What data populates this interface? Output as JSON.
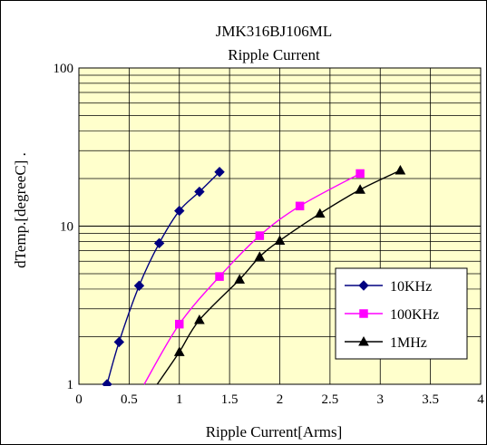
{
  "chart_data": {
    "type": "line",
    "title": "JMK316BJ106ML",
    "subtitle": "Ripple Current",
    "xlabel": "Ripple Current[Arms]",
    "ylabel": "dTemp.[degreeC] .",
    "xlim": [
      0,
      4
    ],
    "ylim": [
      1,
      100
    ],
    "yscale": "log",
    "x_ticks": [
      "0",
      "0.5",
      "1",
      "1.5",
      "2",
      "2.5",
      "3",
      "3.5",
      "4"
    ],
    "y_ticks": [
      "1",
      "10",
      "100"
    ],
    "grid": true,
    "legend_position": "bottom-right",
    "background_color": "#ffffcc",
    "series": [
      {
        "name": "10KHz",
        "color": "#000080",
        "marker": "diamond",
        "x": [
          0.28,
          0.4,
          0.6,
          0.8,
          1.0,
          1.2,
          1.4
        ],
        "y": [
          1.0,
          1.85,
          4.2,
          7.8,
          12.5,
          16.5,
          22.0
        ]
      },
      {
        "name": "100KHz",
        "color": "#ff00ff",
        "marker": "square",
        "x": [
          0.65,
          1.0,
          1.4,
          1.8,
          2.2,
          2.8
        ],
        "y": [
          1.0,
          2.4,
          4.8,
          8.7,
          13.4,
          21.5
        ]
      },
      {
        "name": "1MHz",
        "color": "#000000",
        "marker": "triangle",
        "x": [
          0.78,
          1.0,
          1.2,
          1.6,
          1.8,
          2.0,
          2.4,
          2.8,
          3.2
        ],
        "y": [
          1.0,
          1.6,
          2.55,
          4.6,
          6.4,
          8.1,
          12.0,
          17.0,
          22.5
        ]
      }
    ]
  }
}
